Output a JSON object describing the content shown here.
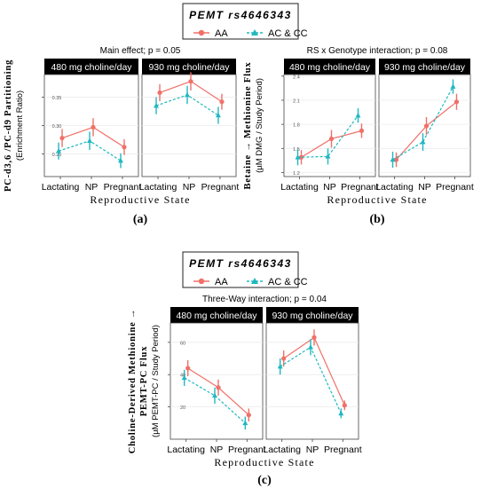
{
  "colors": {
    "aa": "#f07068",
    "ac_cc": "#20b8c0",
    "strip_bg": "#000000",
    "strip_text": "#ffffff",
    "gridline": "#ebebeb"
  },
  "legend": {
    "title": "PEMT rs4646343",
    "items": [
      "AA",
      "AC & CC"
    ]
  },
  "chart_data": [
    {
      "type": "line",
      "panel_label": "(a)",
      "title": "Main effect; p = 0.05",
      "facets": [
        "480 mg choline/day",
        "930 mg choline/day"
      ],
      "categories": [
        "Lactating",
        "NP",
        "Pregnant"
      ],
      "xlabel": "Reproductive State",
      "ylabel": "PC-d3,6 /PC-d9 Partitioning",
      "ylabel_sub": "(Enrichment Ratio)",
      "ylim": [
        0.21,
        0.39
      ],
      "yticks": [
        0.25,
        0.3,
        0.35
      ],
      "ytick_labels": [
        "0.25",
        "0.30",
        "0.35"
      ],
      "grid": true,
      "series": [
        {
          "name": "AA",
          "values": [
            [
              0.278,
              0.297,
              0.262
            ],
            [
              0.358,
              0.378,
              0.342
            ]
          ],
          "err": [
            [
              0.016,
              0.016,
              0.014
            ],
            [
              0.015,
              0.016,
              0.014
            ]
          ]
        },
        {
          "name": "AC & CC",
          "values": [
            [
              0.255,
              0.273,
              0.238
            ],
            [
              0.335,
              0.354,
              0.318
            ]
          ],
          "err": [
            [
              0.015,
              0.016,
              0.013
            ],
            [
              0.015,
              0.016,
              0.015
            ]
          ]
        }
      ]
    },
    {
      "type": "line",
      "panel_label": "(b)",
      "title": "RS x Genotype interaction; p = 0.08",
      "facets": [
        "480 mg choline/day",
        "930 mg choline/day"
      ],
      "categories": [
        "Lactating",
        "NP",
        "Pregnant"
      ],
      "xlabel": "Reproductive State",
      "ylabel": "Betaine → Methionine Flux",
      "ylabel_sub": "(µM DMG / Study Period)",
      "ylim": [
        1.15,
        2.42
      ],
      "yticks": [
        1.2,
        1.5,
        1.8,
        2.1,
        2.4
      ],
      "ytick_labels": [
        "1.2",
        "1.5",
        "1.8",
        "2.1",
        "2.4"
      ],
      "grid": true,
      "series": [
        {
          "name": "AA",
          "values": [
            [
              1.39,
              1.62,
              1.72
            ],
            [
              1.36,
              1.78,
              2.08
            ]
          ],
          "err": [
            [
              0.09,
              0.11,
              0.09
            ],
            [
              0.09,
              0.11,
              0.1
            ]
          ]
        },
        {
          "name": "AC & CC",
          "values": [
            [
              1.39,
              1.4,
              1.91
            ],
            [
              1.36,
              1.58,
              2.27
            ]
          ],
          "err": [
            [
              0.1,
              0.1,
              0.09
            ],
            [
              0.1,
              0.11,
              0.09
            ]
          ]
        }
      ]
    },
    {
      "type": "line",
      "panel_label": "(c)",
      "title": "Three-Way interaction; p = 0.04",
      "facets": [
        "480 mg choline/day",
        "930 mg choline/day"
      ],
      "categories": [
        "Lactating",
        "NP",
        "Pregnant"
      ],
      "xlabel": "Reproductive State",
      "ylabel": "Choline-Derived Methionine →",
      "ylabel2": "PEMT-PC Flux",
      "ylabel_sub": "(µM PEMT-PC / Study Period)",
      "ylim": [
        0,
        72
      ],
      "yticks": [
        20,
        40,
        60
      ],
      "ytick_labels": [
        "20",
        "40",
        "60"
      ],
      "grid": true,
      "series": [
        {
          "name": "AA",
          "values": [
            [
              44,
              32,
              15
            ],
            [
              50,
              63,
              21
            ]
          ],
          "err": [
            [
              5,
              5,
              4
            ],
            [
              5,
              5,
              3
            ]
          ]
        },
        {
          "name": "AC & CC",
          "values": [
            [
              38,
              27,
              10
            ],
            [
              45,
              57,
              16
            ]
          ],
          "err": [
            [
              5,
              5,
              4
            ],
            [
              5,
              5,
              3
            ]
          ]
        }
      ]
    }
  ]
}
